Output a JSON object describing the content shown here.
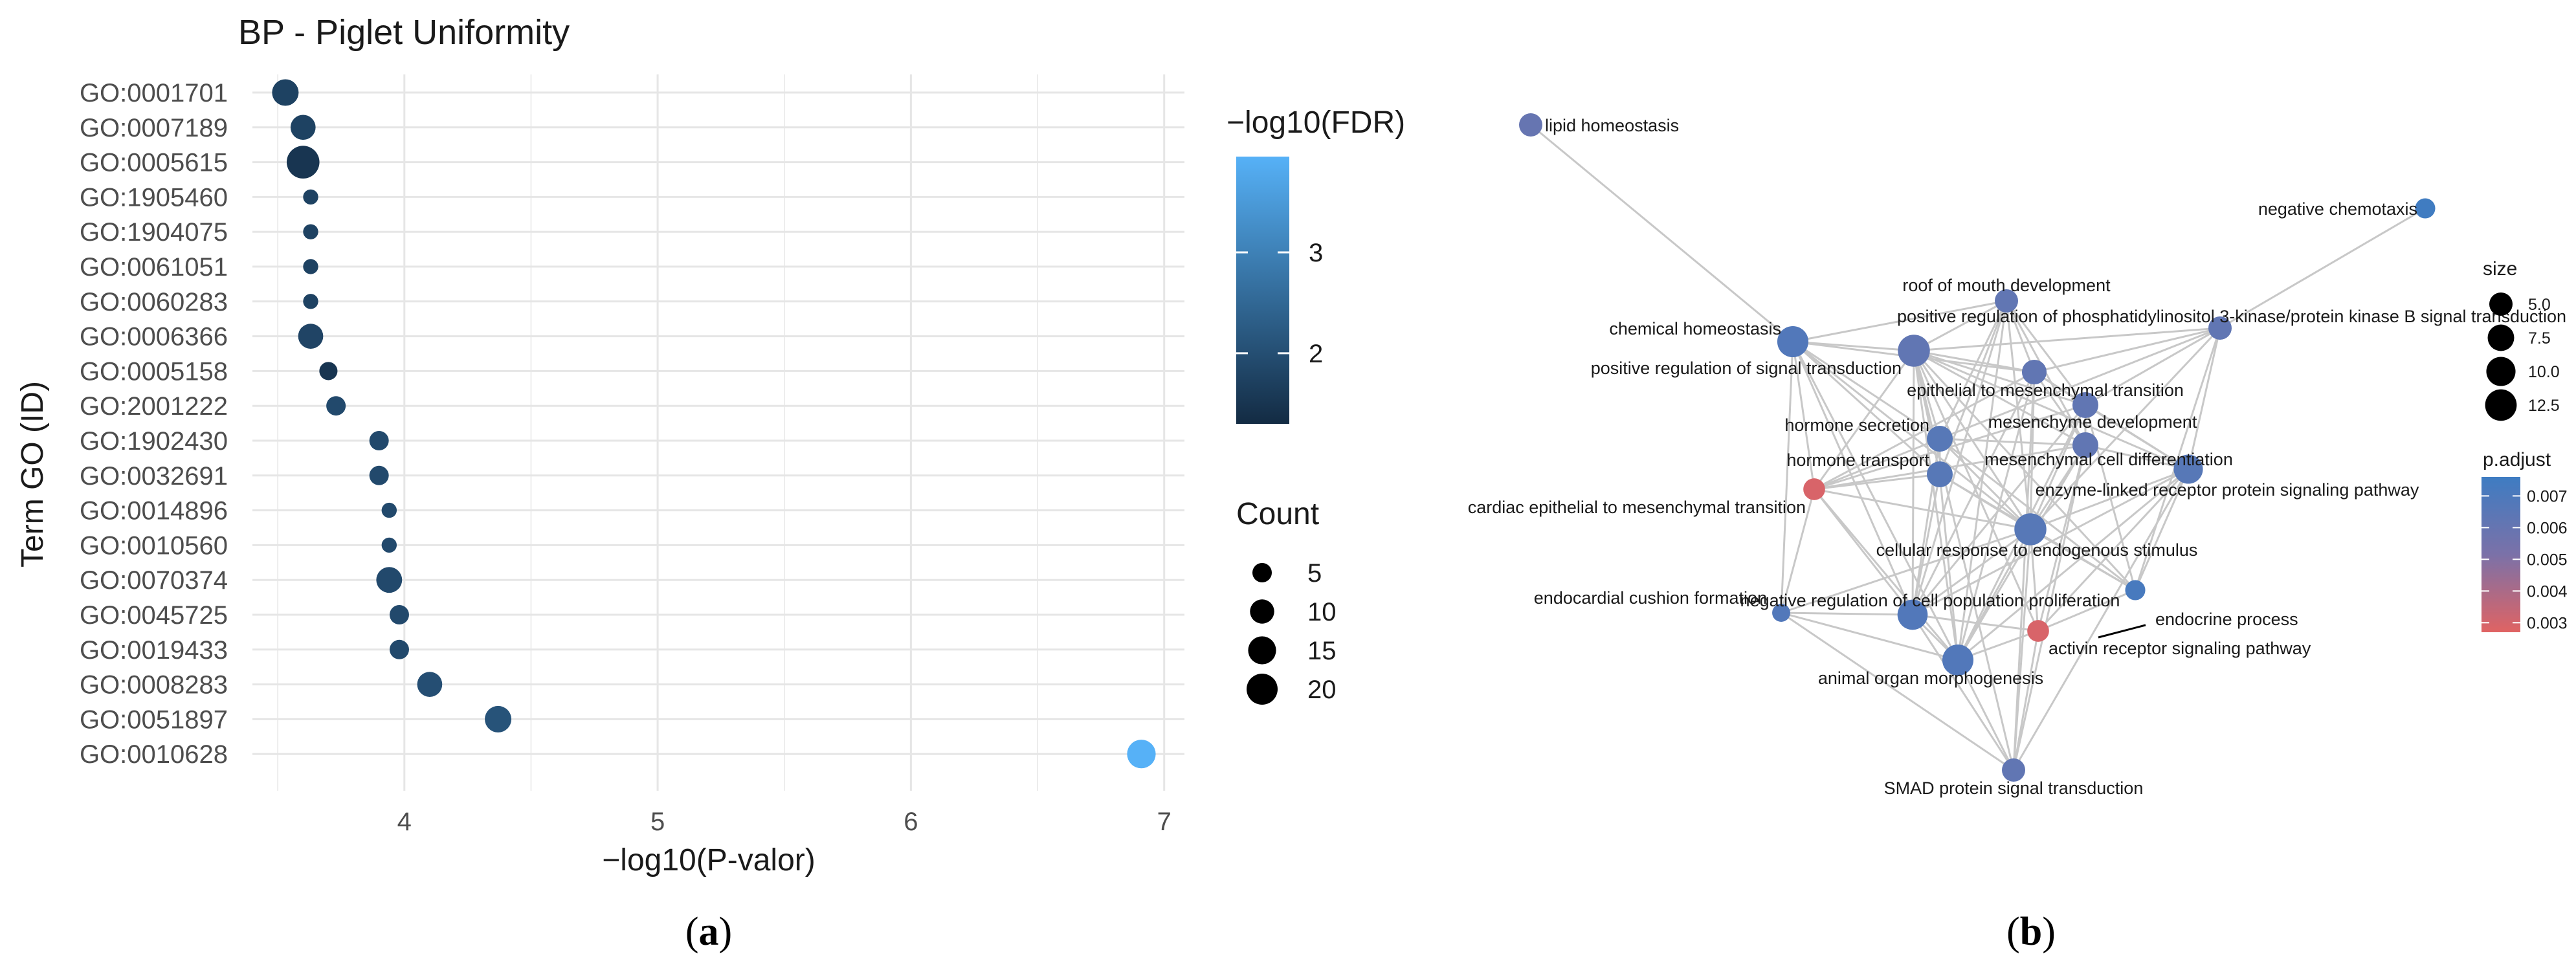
{
  "panels": {
    "a": {
      "caption_open": "(",
      "caption_letter": "a",
      "caption_close": ")"
    },
    "b": {
      "caption_open": "(",
      "caption_letter": "b",
      "caption_close": ")"
    }
  },
  "colors": {
    "fdr_low": "#132B43",
    "fdr_high": "#56B1F7",
    "padj_high": "#3E7CC2",
    "padj_mid": "#7B71A8",
    "padj_low": "#E06363",
    "edge": "#c8c8c8",
    "grid": "#e6e6e6"
  },
  "chart_data": [
    {
      "type": "scatter",
      "title": "BP - Piglet Uniformity",
      "xlabel": "−log10(P-valor)",
      "ylabel": "Term GO (ID)",
      "xlim": [
        3.4,
        7.08
      ],
      "x_ticks": [
        4,
        5,
        6,
        7
      ],
      "grid": true,
      "legend_position": "right",
      "color_legend": {
        "title": "−log10(FDR)",
        "range": [
          1.3,
          3.95
        ],
        "ticks": [
          2,
          3
        ]
      },
      "size_legend": {
        "title": "Count",
        "values": [
          5,
          10,
          15,
          20
        ]
      },
      "points": [
        {
          "term": "GO:0001701",
          "x": 3.53,
          "count": 13,
          "fdr": 1.75
        },
        {
          "term": "GO:0007189",
          "x": 3.6,
          "count": 11,
          "fdr": 1.75
        },
        {
          "term": "GO:0005615",
          "x": 3.6,
          "count": 23,
          "fdr": 1.5
        },
        {
          "term": "GO:1905460",
          "x": 3.63,
          "count": 2,
          "fdr": 1.75
        },
        {
          "term": "GO:1904075",
          "x": 3.63,
          "count": 2,
          "fdr": 1.75
        },
        {
          "term": "GO:0061051",
          "x": 3.63,
          "count": 2,
          "fdr": 1.75
        },
        {
          "term": "GO:0060283",
          "x": 3.63,
          "count": 2,
          "fdr": 1.75
        },
        {
          "term": "GO:0006366",
          "x": 3.63,
          "count": 11,
          "fdr": 1.8
        },
        {
          "term": "GO:0005158",
          "x": 3.7,
          "count": 4,
          "fdr": 1.5
        },
        {
          "term": "GO:2001222",
          "x": 3.73,
          "count": 5,
          "fdr": 1.9
        },
        {
          "term": "GO:1902430",
          "x": 3.9,
          "count": 5,
          "fdr": 1.9
        },
        {
          "term": "GO:0032691",
          "x": 3.9,
          "count": 5,
          "fdr": 1.9
        },
        {
          "term": "GO:0014896",
          "x": 3.94,
          "count": 2,
          "fdr": 1.9
        },
        {
          "term": "GO:0010560",
          "x": 3.94,
          "count": 2,
          "fdr": 1.9
        },
        {
          "term": "GO:0070374",
          "x": 3.94,
          "count": 12,
          "fdr": 1.9
        },
        {
          "term": "GO:0045725",
          "x": 3.98,
          "count": 5,
          "fdr": 1.9
        },
        {
          "term": "GO:0019433",
          "x": 3.98,
          "count": 5,
          "fdr": 1.9
        },
        {
          "term": "GO:0008283",
          "x": 4.1,
          "count": 11,
          "fdr": 2.0
        },
        {
          "term": "GO:0051897",
          "x": 4.37,
          "count": 13,
          "fdr": 2.1
        },
        {
          "term": "GO:0010628",
          "x": 6.91,
          "count": 16,
          "fdr": 3.95
        }
      ]
    },
    {
      "type": "network",
      "size_legend": {
        "title": "size",
        "values": [
          "5.0",
          "7.5",
          "10.0",
          "12.5"
        ]
      },
      "color_legend": {
        "title": "p.adjust",
        "ticks": [
          "0.007",
          "0.006",
          "0.005",
          "0.004",
          "0.003"
        ],
        "range": [
          0.0027,
          0.0076
        ]
      },
      "nodes": [
        {
          "id": "lipid",
          "label": "lipid homeostasis",
          "size": 5,
          "padj": 0.006
        },
        {
          "id": "negchemo",
          "label": "negative chemotaxis",
          "size": 3,
          "padj": 0.0075
        },
        {
          "id": "roof",
          "label": "roof of mouth development",
          "size": 5,
          "padj": 0.0062
        },
        {
          "id": "pi3k",
          "label": "positive regulation of phosphatidylinositol 3-kinase/protein kinase B signal transduction",
          "size": 5,
          "padj": 0.0062
        },
        {
          "id": "chemhomeo",
          "label": "chemical homeostasis",
          "size": 12,
          "padj": 0.0068
        },
        {
          "id": "possignal",
          "label": "positive regulation of signal transduction",
          "size": 13,
          "padj": 0.0062
        },
        {
          "id": "emt",
          "label": "epithelial to mesenchymal transition",
          "size": 6,
          "padj": 0.0062
        },
        {
          "id": "mesdev",
          "label": "mesenchyme development",
          "size": 7,
          "padj": 0.0062
        },
        {
          "id": "hsecretion",
          "label": "hormone secretion",
          "size": 7,
          "padj": 0.0066
        },
        {
          "id": "mesdiff",
          "label": "mesenchymal cell differentiation",
          "size": 7,
          "padj": 0.0062
        },
        {
          "id": "htransport",
          "label": "hormone transport",
          "size": 7,
          "padj": 0.0066
        },
        {
          "id": "enzyme",
          "label": "enzyme-linked receptor protein signaling pathway",
          "size": 10,
          "padj": 0.0066
        },
        {
          "id": "cardiac",
          "label": "cardiac epithelial to mesenchymal transition",
          "size": 4,
          "padj": 0.0029
        },
        {
          "id": "cellresp",
          "label": "cellular response to endogenous stimulus",
          "size": 13,
          "padj": 0.0066
        },
        {
          "id": "endocrine",
          "label": "endocrine process",
          "size": 3,
          "padj": 0.0072
        },
        {
          "id": "endocardial",
          "label": "endocardial cushion formation",
          "size": 2,
          "padj": 0.0068
        },
        {
          "id": "negprolif",
          "label": "negative regulation of cell population proliferation",
          "size": 11,
          "padj": 0.0068
        },
        {
          "id": "activin",
          "label": "activin receptor signaling pathway",
          "size": 4,
          "padj": 0.0029
        },
        {
          "id": "organ",
          "label": "animal organ morphogenesis",
          "size": 12,
          "padj": 0.0068
        },
        {
          "id": "smad",
          "label": "SMAD protein signal transduction",
          "size": 5,
          "padj": 0.0062
        }
      ],
      "edges": [
        [
          "lipid",
          "chemhomeo"
        ],
        [
          "negchemo",
          "pi3k"
        ],
        [
          "roof",
          "possignal"
        ],
        [
          "roof",
          "emt"
        ],
        [
          "roof",
          "mesdev"
        ],
        [
          "roof",
          "mesdiff"
        ],
        [
          "roof",
          "htransport"
        ],
        [
          "roof",
          "cellresp"
        ],
        [
          "roof",
          "organ"
        ],
        [
          "roof",
          "hsecretion"
        ],
        [
          "roof",
          "negprolif"
        ],
        [
          "roof",
          "chemhomeo"
        ],
        [
          "chemhomeo",
          "possignal"
        ],
        [
          "chemhomeo",
          "hsecretion"
        ],
        [
          "chemhomeo",
          "htransport"
        ],
        [
          "chemhomeo",
          "cardiac"
        ],
        [
          "chemhomeo",
          "cellresp"
        ],
        [
          "chemhomeo",
          "negprolif"
        ],
        [
          "chemhomeo",
          "organ"
        ],
        [
          "chemhomeo",
          "endocardial"
        ],
        [
          "chemhomeo",
          "emt"
        ],
        [
          "possignal",
          "pi3k"
        ],
        [
          "possignal",
          "emt"
        ],
        [
          "possignal",
          "mesdev"
        ],
        [
          "possignal",
          "hsecretion"
        ],
        [
          "possignal",
          "htransport"
        ],
        [
          "possignal",
          "mesdiff"
        ],
        [
          "possignal",
          "enzyme"
        ],
        [
          "possignal",
          "cellresp"
        ],
        [
          "possignal",
          "negprolif"
        ],
        [
          "possignal",
          "organ"
        ],
        [
          "possignal",
          "activin"
        ],
        [
          "possignal",
          "smad"
        ],
        [
          "possignal",
          "cardiac"
        ],
        [
          "possignal",
          "endocrine"
        ],
        [
          "pi3k",
          "enzyme"
        ],
        [
          "pi3k",
          "cellresp"
        ],
        [
          "pi3k",
          "mesdev"
        ],
        [
          "pi3k",
          "endocrine"
        ],
        [
          "pi3k",
          "emt"
        ],
        [
          "pi3k",
          "hsecretion"
        ],
        [
          "emt",
          "mesdev"
        ],
        [
          "emt",
          "mesdiff"
        ],
        [
          "emt",
          "cardiac"
        ],
        [
          "emt",
          "cellresp"
        ],
        [
          "emt",
          "negprolif"
        ],
        [
          "emt",
          "organ"
        ],
        [
          "emt",
          "enzyme"
        ],
        [
          "mesdev",
          "mesdiff"
        ],
        [
          "mesdev",
          "cellresp"
        ],
        [
          "mesdev",
          "organ"
        ],
        [
          "mesdev",
          "negprolif"
        ],
        [
          "mesdev",
          "enzyme"
        ],
        [
          "mesdev",
          "cardiac"
        ],
        [
          "mesdev",
          "endocrine"
        ],
        [
          "hsecretion",
          "htransport"
        ],
        [
          "hsecretion",
          "cellresp"
        ],
        [
          "hsecretion",
          "endocrine"
        ],
        [
          "hsecretion",
          "mesdiff"
        ],
        [
          "hsecretion",
          "negprolif"
        ],
        [
          "hsecretion",
          "cardiac"
        ],
        [
          "htransport",
          "cellresp"
        ],
        [
          "htransport",
          "endocrine"
        ],
        [
          "htransport",
          "cardiac"
        ],
        [
          "htransport",
          "organ"
        ],
        [
          "htransport",
          "negprolif"
        ],
        [
          "mesdiff",
          "cellresp"
        ],
        [
          "mesdiff",
          "organ"
        ],
        [
          "mesdiff",
          "enzyme"
        ],
        [
          "mesdiff",
          "cardiac"
        ],
        [
          "mesdiff",
          "activin"
        ],
        [
          "enzyme",
          "cellresp"
        ],
        [
          "enzyme",
          "activin"
        ],
        [
          "enzyme",
          "smad"
        ],
        [
          "enzyme",
          "organ"
        ],
        [
          "enzyme",
          "negprolif"
        ],
        [
          "enzyme",
          "endocrine"
        ],
        [
          "cardiac",
          "cellresp"
        ],
        [
          "cardiac",
          "organ"
        ],
        [
          "cardiac",
          "endocardial"
        ],
        [
          "cardiac",
          "negprolif"
        ],
        [
          "cellresp",
          "negprolif"
        ],
        [
          "cellresp",
          "organ"
        ],
        [
          "cellresp",
          "activin"
        ],
        [
          "cellresp",
          "smad"
        ],
        [
          "cellresp",
          "endocrine"
        ],
        [
          "cellresp",
          "endocardial"
        ],
        [
          "negprolif",
          "organ"
        ],
        [
          "negprolif",
          "activin"
        ],
        [
          "negprolif",
          "smad"
        ],
        [
          "negprolif",
          "endocardial"
        ],
        [
          "organ",
          "activin"
        ],
        [
          "organ",
          "smad"
        ],
        [
          "organ",
          "endocardial"
        ],
        [
          "activin",
          "smad"
        ],
        [
          "activin",
          "endocrine"
        ],
        [
          "smad",
          "endocardial"
        ],
        [
          "smad",
          "mesdiff"
        ],
        [
          "smad",
          "emt"
        ]
      ]
    }
  ]
}
